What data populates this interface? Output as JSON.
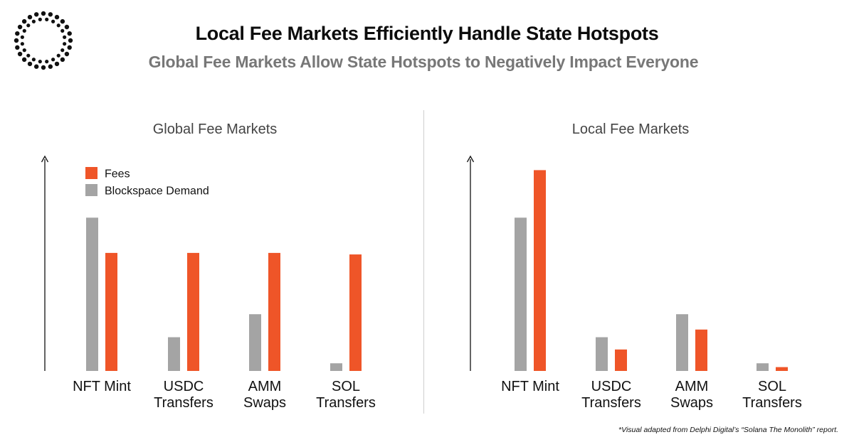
{
  "header": {
    "title": "Local Fee Markets Efficiently Handle State Hotspots",
    "subtitle": "Global Fee Markets Allow State Hotspots to Negatively Impact Everyone"
  },
  "footnote": "*Visual adapted from Delphi Digital’s “Solana The Monolith” report.",
  "colors": {
    "fees": "#ef5528",
    "demand": "#a4a4a4",
    "axis": "#111111"
  },
  "chart_data": [
    {
      "type": "bar",
      "title": "Global Fee Markets",
      "categories": [
        [
          "NFT Mint"
        ],
        [
          "USDC",
          "Transfers"
        ],
        [
          "AMM",
          "Swaps"
        ],
        [
          "SOL",
          "Transfers"
        ]
      ],
      "series": [
        {
          "name": "Blockspace Demand",
          "values": [
            100,
            22,
            37,
            5
          ]
        },
        {
          "name": "Fees",
          "values": [
            77,
            77,
            77,
            76
          ]
        }
      ],
      "ylim": [
        0,
        140
      ],
      "legend": {
        "placement": "top-left",
        "entries": [
          "Fees",
          "Blockspace Demand"
        ]
      }
    },
    {
      "type": "bar",
      "title": "Local Fee Markets",
      "categories": [
        [
          "NFT Mint"
        ],
        [
          "USDC",
          "Transfers"
        ],
        [
          "AMM",
          "Swaps"
        ],
        [
          "SOL",
          "Transfers"
        ]
      ],
      "series": [
        {
          "name": "Blockspace Demand",
          "values": [
            100,
            22,
            37,
            5
          ]
        },
        {
          "name": "Fees",
          "values": [
            131,
            14,
            27,
            2.5
          ]
        }
      ],
      "ylim": [
        0,
        140
      ]
    }
  ]
}
